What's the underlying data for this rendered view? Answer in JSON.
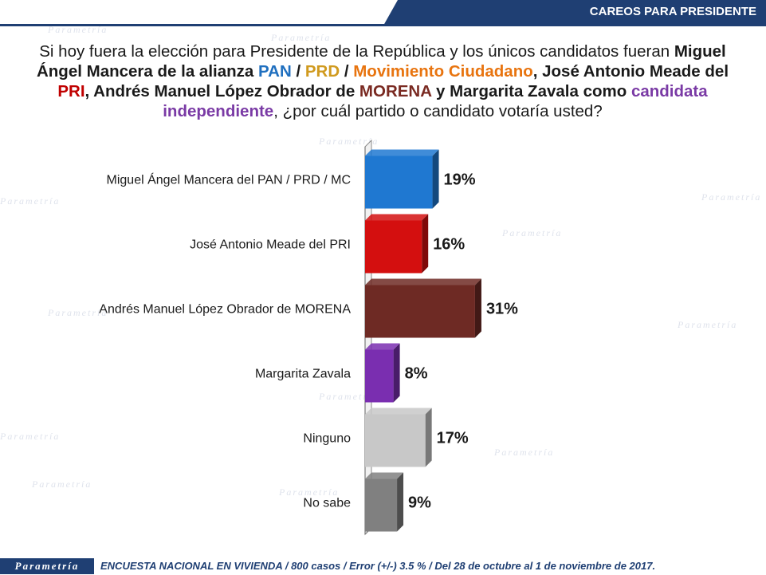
{
  "header": {
    "title": "CAREOS PARA PRESIDENTE"
  },
  "question": {
    "p1": "Si hoy fuera la elección para Presidente de la República y los únicos candidatos fueran ",
    "b1": "Miguel Ángel Mancera de la alianza ",
    "pan": "PAN",
    "sep1": " / ",
    "prd": "PRD",
    "sep2": " / ",
    "mc": "Movimiento Ciudadano",
    "b2": ", José Antonio Meade del ",
    "pri": "PRI",
    "b3": ", Andrés Manuel López Obrador de ",
    "morena": "MORENA",
    "b4": " y Margarita Zavala como ",
    "ind": "candidata independiente",
    "p2": ", ¿por cuál partido o candidato votaría usted?"
  },
  "watermark": "Parametría",
  "chart_data": {
    "type": "bar",
    "orientation": "horizontal",
    "categories": [
      "Miguel Ángel Mancera del PAN / PRD / MC",
      "José Antonio Meade del PRI",
      "Andrés Manuel López Obrador de MORENA",
      "Margarita Zavala",
      "Ninguno",
      "No sabe"
    ],
    "values": [
      19,
      16,
      31,
      8,
      17,
      9
    ],
    "data_labels": [
      "19%",
      "16%",
      "31%",
      "8%",
      "17%",
      "9%"
    ],
    "colors": [
      "#1f78d1",
      "#d40f0f",
      "#6e2a24",
      "#7a2eb0",
      "#c8c8c8",
      "#808080"
    ],
    "grid": false,
    "axis_labels_shown": false
  },
  "footer": {
    "logo": "Parametría",
    "text": "ENCUESTA NACIONAL EN VIVIENDA / 800 casos / Error (+/-) 3.5 % / Del 28 de octubre al 1 de noviembre de 2017."
  }
}
